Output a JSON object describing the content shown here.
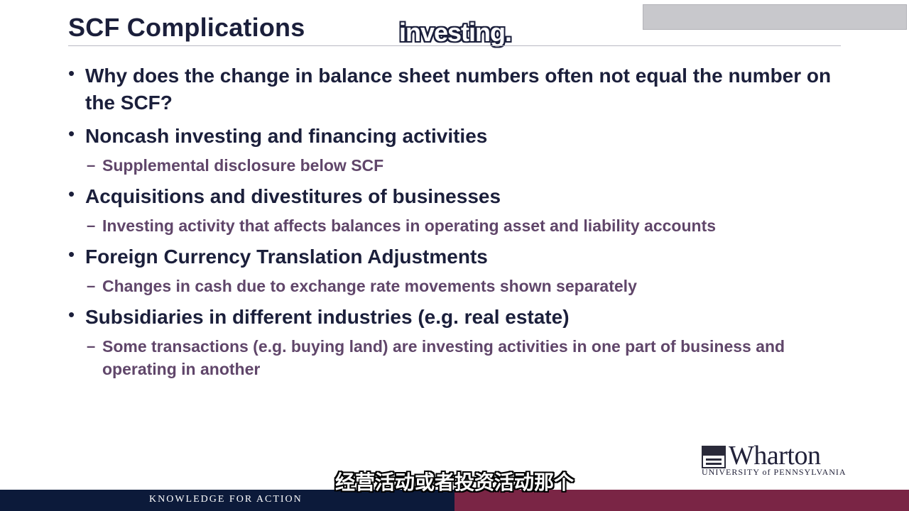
{
  "slide": {
    "title": "SCF Complications",
    "bullets": [
      {
        "text": "Why does the change in balance sheet numbers often not equal the number on the SCF?",
        "sub": null
      },
      {
        "text": "Noncash investing and financing activities",
        "sub": "Supplemental disclosure below SCF"
      },
      {
        "text": "Acquisitions and divestitures of businesses",
        "sub": "Investing activity that affects balances in operating asset and liability accounts"
      },
      {
        "text": "Foreign Currency Translation Adjustments",
        "sub": "Changes in cash due to exchange rate movements shown separately"
      },
      {
        "text": "Subsidiaries in different industries (e.g. real estate)",
        "sub": "Some transactions (e.g. buying land) are investing activities in one part of business and operating in another"
      }
    ]
  },
  "captions": {
    "top": "investing.",
    "bottom": "经营活动或者投资活动那个"
  },
  "logo": {
    "name": "Wharton",
    "subtitle": "UNIVERSITY of PENNSYLVANIA"
  },
  "footer": {
    "tagline": "KNOWLEDGE FOR ACTION"
  },
  "colors": {
    "title": "#1b1f3b",
    "sub_bullet": "#60466a",
    "footer_navy": "#0c1a3a",
    "footer_maroon": "#7a2545"
  }
}
